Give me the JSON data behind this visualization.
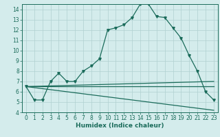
{
  "xlabel": "Humidex (Indice chaleur)",
  "xlim": [
    -0.5,
    23.5
  ],
  "ylim": [
    4,
    14.5
  ],
  "yticks": [
    4,
    5,
    6,
    7,
    8,
    9,
    10,
    11,
    12,
    13,
    14
  ],
  "xticks": [
    0,
    1,
    2,
    3,
    4,
    5,
    6,
    7,
    8,
    9,
    10,
    11,
    12,
    13,
    14,
    15,
    16,
    17,
    18,
    19,
    20,
    21,
    22,
    23
  ],
  "background_color": "#d4ecec",
  "grid_color": "#b0d0d0",
  "line_color": "#1a6b5a",
  "lines": [
    {
      "x": [
        0,
        1,
        2,
        3,
        4,
        5,
        6,
        7,
        8,
        9,
        10,
        11,
        12,
        13,
        14,
        15,
        16,
        17,
        18,
        19,
        20,
        21,
        22,
        23
      ],
      "y": [
        6.5,
        5.2,
        5.2,
        7.0,
        7.8,
        7.0,
        7.0,
        8.0,
        8.5,
        9.2,
        12.0,
        12.2,
        12.5,
        13.2,
        14.5,
        14.5,
        13.3,
        13.2,
        12.2,
        11.2,
        9.5,
        8.0,
        6.0,
        5.2
      ],
      "marker": true
    },
    {
      "x": [
        0,
        23
      ],
      "y": [
        6.5,
        7.0
      ],
      "marker": false,
      "lw": 0.9
    },
    {
      "x": [
        0,
        23
      ],
      "y": [
        6.5,
        6.5
      ],
      "marker": false,
      "lw": 0.9
    },
    {
      "x": [
        0,
        23
      ],
      "y": [
        6.5,
        4.2
      ],
      "marker": false,
      "lw": 0.9
    }
  ]
}
